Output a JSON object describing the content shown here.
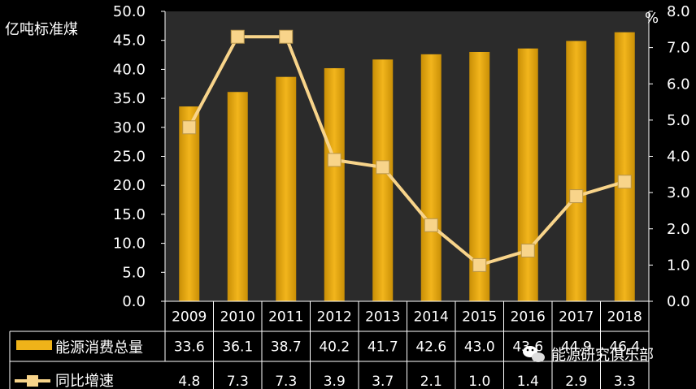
{
  "chart_data": {
    "type": "bar",
    "categories": [
      "2009",
      "2010",
      "2011",
      "2012",
      "2013",
      "2014",
      "2015",
      "2016",
      "2017",
      "2018"
    ],
    "series": [
      {
        "name": "能源消费总量",
        "chart": "bar",
        "axis": "left",
        "values": [
          33.6,
          36.1,
          38.7,
          40.2,
          41.7,
          42.6,
          43.0,
          43.6,
          44.9,
          46.4
        ],
        "labels": [
          "33.6",
          "36.1",
          "38.7",
          "40.2",
          "41.7",
          "42.6",
          "43.0",
          "43.6",
          "44.9",
          "46.4"
        ]
      },
      {
        "name": "同比增速",
        "chart": "line",
        "axis": "right",
        "values": [
          4.8,
          7.3,
          7.3,
          3.9,
          3.7,
          2.1,
          1.0,
          1.4,
          2.9,
          3.3
        ],
        "labels": [
          "4.8",
          "7.3",
          "7.3",
          "3.9",
          "3.7",
          "2.1",
          "1.0",
          "1.4",
          "2.9",
          "3.3"
        ]
      }
    ],
    "ylabel": "亿吨标准煤",
    "y2label": "%",
    "ylim": [
      0,
      50
    ],
    "y2lim": [
      0,
      8
    ],
    "yticks": [
      "0.0",
      "5.0",
      "10.0",
      "15.0",
      "20.0",
      "25.0",
      "30.0",
      "35.0",
      "40.0",
      "45.0",
      "50.0"
    ],
    "y2ticks": [
      "0.0",
      "1.0",
      "2.0",
      "3.0",
      "4.0",
      "5.0",
      "6.0",
      "7.0",
      "8.0"
    ],
    "grid": false,
    "legend": "data-table",
    "colors": {
      "background": "#000000",
      "plot_area": "#2b2b2b",
      "bar": "#efb319",
      "line": "#f8d48a",
      "text": "#ffffff"
    }
  },
  "watermark": "能源研究俱乐部"
}
